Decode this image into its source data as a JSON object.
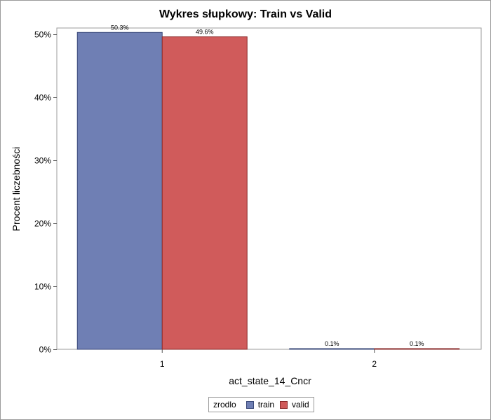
{
  "chart_data": {
    "type": "bar",
    "title": "Wykres słupkowy: Train vs Valid",
    "xlabel": "act_state_14_Cncr",
    "ylabel": "Procent liczebności",
    "categories": [
      "1",
      "2"
    ],
    "ylim": [
      0,
      50
    ],
    "yticks": [
      0,
      10,
      20,
      30,
      40,
      50
    ],
    "ytick_labels": [
      "0%",
      "10%",
      "20%",
      "30%",
      "40%",
      "50%"
    ],
    "series": [
      {
        "name": "train",
        "color": "#6f7fb4",
        "edge": "#3b4a7a",
        "values": [
          50.3,
          0.1
        ],
        "labels": [
          "50.3%",
          "0.1%"
        ]
      },
      {
        "name": "valid",
        "color": "#d05b5b",
        "edge": "#8a2b2b",
        "values": [
          49.6,
          0.1
        ],
        "labels": [
          "49.6%",
          "0.1%"
        ]
      }
    ],
    "legend": {
      "title": "zrodlo",
      "position": "bottom"
    }
  }
}
